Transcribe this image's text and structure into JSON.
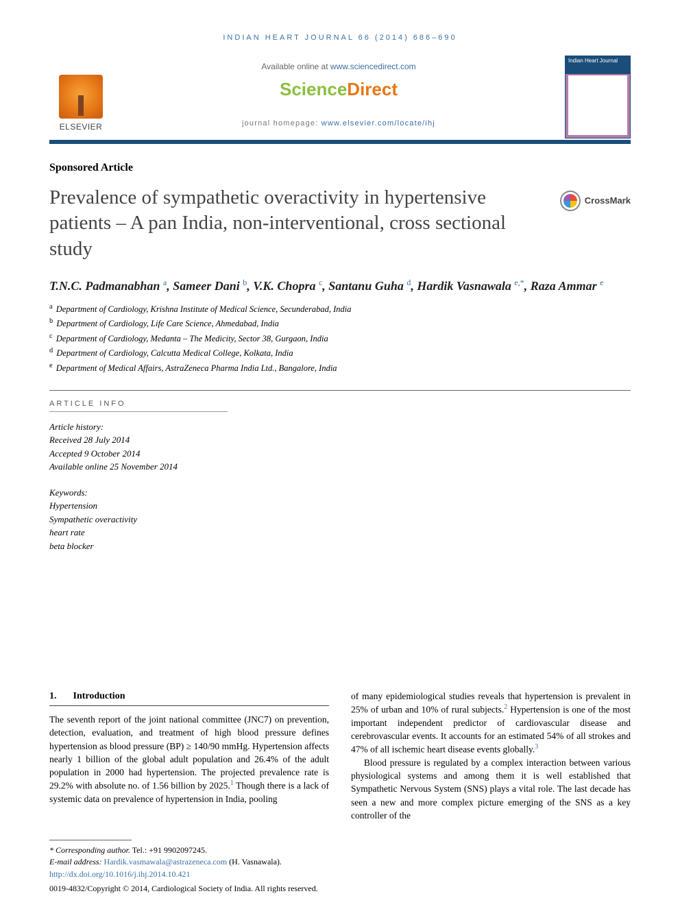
{
  "running_head": "INDIAN HEART JOURNAL 66 (2014) 686–690",
  "masthead": {
    "publisher": "ELSEVIER",
    "available_prefix": "Available online at ",
    "available_link": "www.sciencedirect.com",
    "sd_logo_a": "Science",
    "sd_logo_b": "Direct",
    "homepage_prefix": "journal homepage: ",
    "homepage_link": "www.elsevier.com/locate/ihj",
    "cover_title": "Indian Heart Journal"
  },
  "crossmark_label": "CrossMark",
  "article_type": "Sponsored Article",
  "title": "Prevalence of sympathetic overactivity in hypertensive patients – A pan India, non-interventional, cross sectional study",
  "authors_html": "T.N.C. Padmanabhan <sup>a</sup>, Sameer Dani <sup>b</sup>, V.K. Chopra <sup>c</sup>, Santanu Guha <sup>d</sup>, Hardik Vasnawala <sup>e,*</sup>, Raza Ammar <sup>e</sup>",
  "affiliations": [
    {
      "key": "a",
      "text": "Department of Cardiology, Krishna Institute of Medical Science, Secunderabad, India"
    },
    {
      "key": "b",
      "text": "Department of Cardiology, Life Care Science, Ahmedabad, India"
    },
    {
      "key": "c",
      "text": "Department of Cardiology, Medanta – The Medicity, Sector 38, Gurgaon, India"
    },
    {
      "key": "d",
      "text": "Department of Cardiology, Calcutta Medical College, Kolkata, India"
    },
    {
      "key": "e",
      "text": "Department of Medical Affairs, AstraZeneca Pharma India Ltd., Bangalore, India"
    }
  ],
  "article_info": {
    "heading": "ARTICLE INFO",
    "history_label": "Article history:",
    "received": "Received 28 July 2014",
    "accepted": "Accepted 9 October 2014",
    "online": "Available online 25 November 2014",
    "keywords_label": "Keywords:",
    "keywords": [
      "Hypertension",
      "Sympathetic overactivity",
      "heart rate",
      "beta blocker"
    ]
  },
  "section1": {
    "num": "1.",
    "title": "Introduction"
  },
  "body": {
    "p1a": "The seventh report of the joint national committee (JNC7) on prevention, detection, evaluation, and treatment of high blood pressure defines hypertension as blood pressure (BP) ≥ 140/90 mmHg. Hypertension affects nearly 1 billion of the global adult population and 26.4% of the adult population in 2000 had hypertension. The projected prevalence rate is 29.2% with absolute no. of 1.56 billion by 2025.",
    "p1b": " Though there is a lack of systemic data on prevalence of hypertension in India, pooling",
    "p2a": "of many epidemiological studies reveals that hypertension is prevalent in 25% of urban and 10% of rural subjects.",
    "p2b": " Hypertension is one of the most important independent predictor of cardiovascular disease and cerebrovascular events. It accounts for an estimated 54% of all strokes and 47% of all ischemic heart disease events globally.",
    "p3": "Blood pressure is regulated by a complex interaction between various physiological systems and among them it is well established that Sympathetic Nervous System (SNS) plays a vital role. The last decade has seen a new and more complex picture emerging of the SNS as a key controller of the"
  },
  "refs": {
    "r1": "1",
    "r2": "2",
    "r3": "3"
  },
  "footnotes": {
    "corr_label": "* Corresponding author.",
    "tel_label": " Tel.: ",
    "tel": "+91 9902097245.",
    "email_label": "E-mail address: ",
    "email": "Hardik.vasmawala@astrazeneca.com",
    "email_paren": " (H. Vasnawala).",
    "doi": "http://dx.doi.org/10.1016/j.ihj.2014.10.421",
    "issn_copy": "0019-4832/Copyright © 2014, Cardiological Society of India. All rights reserved."
  },
  "colors": {
    "link": "#3b6fa0",
    "blue_bar": "#1a4d7a",
    "sd_green": "#8bbf3f",
    "sd_orange": "#e67817"
  }
}
